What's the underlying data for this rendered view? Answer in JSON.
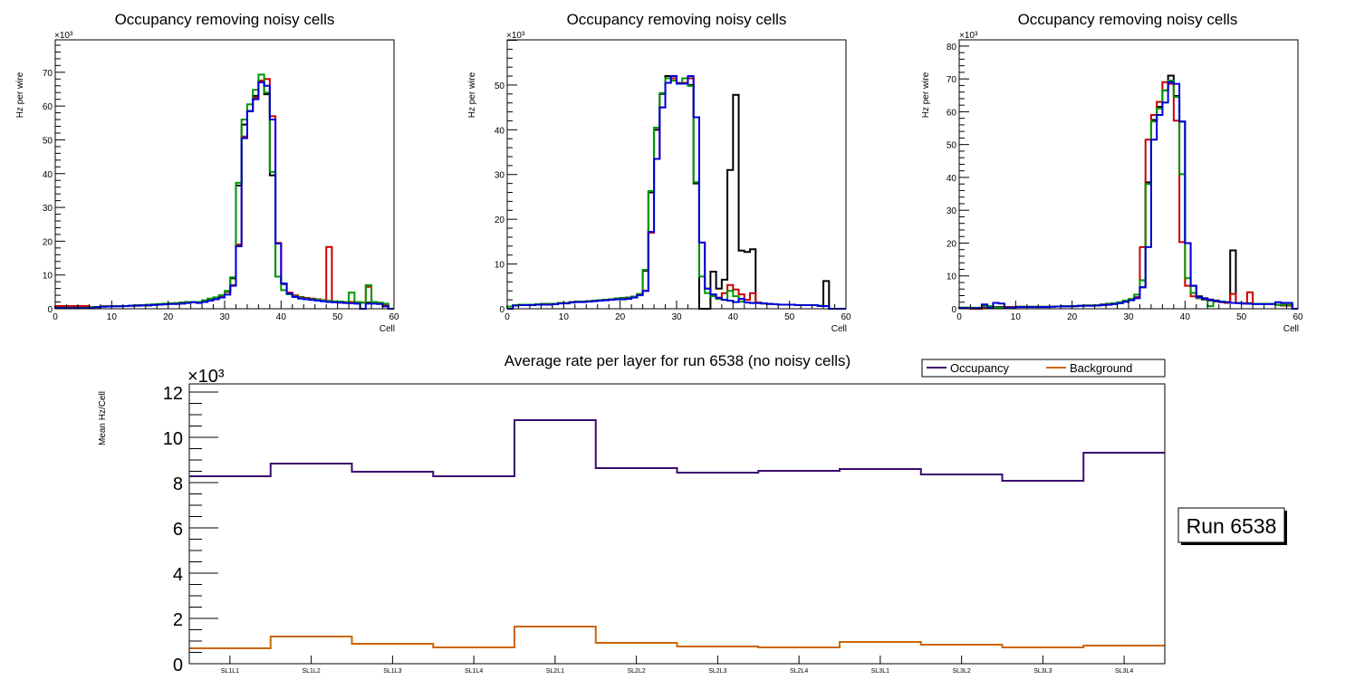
{
  "chart_data": [
    {
      "type": "line",
      "subtype": "step-histogram",
      "title": "Occupancy removing noisy cells",
      "xlabel": "Cell",
      "ylabel": "Hz per wire",
      "y_multiplier_label": "×10³",
      "xlim": [
        0,
        60
      ],
      "ylim": [
        0,
        79.6
      ],
      "x_ticks": [
        0,
        10,
        20,
        30,
        40,
        50,
        60
      ],
      "y_ticks": [
        0,
        10,
        20,
        30,
        40,
        50,
        60,
        70
      ],
      "bins": 60,
      "series": [
        {
          "name": "black",
          "color": "#000000",
          "values": [
            0.5,
            0.5,
            0.5,
            0.5,
            0.5,
            0.5,
            0.5,
            0.5,
            0.7,
            0.7,
            0.8,
            0.8,
            0.8,
            0.9,
            1,
            1,
            1,
            1.2,
            1.3,
            1.4,
            1.5,
            1.6,
            1.8,
            2,
            2,
            2,
            2.4,
            2.8,
            3.2,
            3.8,
            5,
            9,
            36.5,
            54.5,
            58.5,
            63,
            67.5,
            63.5,
            39.5,
            9.5,
            7.3,
            4.5,
            3.8,
            3.3,
            3,
            2.8,
            2.7,
            2.5,
            2.3,
            2.1,
            2,
            2,
            2,
            1.9,
            1.8,
            1.8,
            1.7,
            1.6,
            1,
            0
          ]
        },
        {
          "name": "red",
          "color": "#cc0000",
          "values": [
            0.8,
            0.8,
            0.8,
            0.8,
            0.8,
            0.8,
            0.5,
            0.5,
            0.7,
            0.7,
            0.8,
            0.8,
            0.8,
            0.9,
            1,
            1,
            1,
            1.2,
            1.3,
            1.4,
            1.5,
            1.6,
            1.8,
            2,
            2,
            2,
            2.4,
            2.8,
            3.2,
            3.8,
            5,
            7,
            19,
            51,
            58.5,
            62.5,
            67.5,
            68,
            57,
            19.5,
            7.5,
            4.8,
            4,
            3.5,
            3.2,
            3,
            2.8,
            2.5,
            18.3,
            2.1,
            2.1,
            2,
            2,
            1.9,
            1.8,
            6.5,
            1.7,
            1.6,
            1,
            0
          ]
        },
        {
          "name": "green",
          "color": "#009900",
          "values": [
            0.3,
            0.3,
            0.3,
            0.3,
            0.3,
            0.3,
            0.5,
            0.5,
            0.7,
            0.7,
            0.8,
            0.8,
            0.8,
            0.9,
            1,
            1,
            1.2,
            1.3,
            1.4,
            1.5,
            1.6,
            1.7,
            1.8,
            2,
            2,
            2,
            2.5,
            3,
            3.4,
            4,
            5.3,
            9.3,
            37.3,
            56,
            60.5,
            64.8,
            69.3,
            64,
            40.5,
            9.5,
            5.5,
            4.3,
            3.7,
            3.3,
            3,
            2.8,
            2.7,
            2.4,
            2.3,
            2.2,
            2.1,
            2,
            4.8,
            2,
            1.8,
            7,
            2,
            1.8,
            1.5,
            0
          ]
        },
        {
          "name": "blue",
          "color": "#0000dd",
          "values": [
            0.2,
            0.2,
            0.2,
            0.2,
            0.2,
            0.2,
            0.2,
            0.5,
            0.6,
            0.7,
            0.7,
            0.7,
            0.8,
            0.9,
            0.9,
            1,
            1,
            1.1,
            1.2,
            1.3,
            1.4,
            1.4,
            1.5,
            1.7,
            1.9,
            1.7,
            2,
            2.4,
            2.8,
            3.3,
            4.2,
            6.8,
            18.5,
            50.5,
            58.5,
            62,
            67,
            66,
            56,
            19.3,
            7.5,
            4.5,
            3.5,
            3,
            2.8,
            2.6,
            2.4,
            2.2,
            2,
            1.9,
            1.8,
            1.7,
            1.6,
            1.5,
            0,
            1.5,
            1.5,
            1.4,
            0.7,
            0
          ]
        }
      ]
    },
    {
      "type": "line",
      "subtype": "step-histogram",
      "title": "Occupancy removing noisy cells",
      "xlabel": "Cell",
      "ylabel": "Hz per wire",
      "y_multiplier_label": "×10³",
      "xlim": [
        0,
        60
      ],
      "ylim": [
        0,
        60.1
      ],
      "x_ticks": [
        0,
        10,
        20,
        30,
        40,
        50,
        60
      ],
      "y_ticks": [
        0,
        10,
        20,
        30,
        40,
        50
      ],
      "bins": 60,
      "series": [
        {
          "name": "black",
          "color": "#000000",
          "values": [
            0.5,
            0.8,
            0.9,
            0.9,
            0.9,
            1,
            1.1,
            1.1,
            1.1,
            1.3,
            1.3,
            1.5,
            1.6,
            1.6,
            1.7,
            1.8,
            1.9,
            2,
            2.1,
            2.3,
            2.4,
            2.5,
            2.7,
            3.3,
            8.5,
            26,
            40,
            48,
            52,
            51.5,
            50.5,
            50.5,
            50,
            28,
            0,
            0,
            8.3,
            4.5,
            6.5,
            31,
            47.8,
            13,
            12.7,
            13.3,
            1.3,
            1.2,
            1.1,
            1,
            0.9,
            0.9,
            0.9,
            0.8,
            0.8,
            0.8,
            0.8,
            0.7,
            6.2,
            0,
            0,
            0
          ]
        },
        {
          "name": "red",
          "color": "#cc0000",
          "values": [
            0.5,
            0.8,
            0.9,
            0.9,
            0.9,
            1,
            1.1,
            1.1,
            1.1,
            1.3,
            1.3,
            1.5,
            1.6,
            1.6,
            1.7,
            1.8,
            1.9,
            2,
            2.1,
            2.2,
            2.2,
            2.3,
            2.6,
            3.2,
            4,
            17,
            33.5,
            45,
            51.5,
            51.5,
            50.5,
            50.5,
            51.5,
            42.8,
            14.8,
            4.5,
            3,
            2.5,
            3.5,
            5.3,
            4.3,
            3.2,
            2,
            3.5,
            1.4,
            1.2,
            1.1,
            1,
            0.9,
            0.9,
            0.9,
            0.8,
            0.8,
            0.8,
            0.8,
            0.7,
            0.6,
            0,
            0,
            0
          ]
        },
        {
          "name": "green",
          "color": "#009900",
          "values": [
            0.5,
            0.8,
            0.9,
            0.9,
            0.9,
            1,
            1.1,
            1.1,
            1.1,
            1.3,
            1.3,
            1.5,
            1.6,
            1.6,
            1.7,
            1.8,
            1.9,
            2,
            2.1,
            2.3,
            2.3,
            2.4,
            2.7,
            3.3,
            8.7,
            26.3,
            40.5,
            48.2,
            51.5,
            51,
            50.3,
            51.5,
            49.8,
            28.3,
            7.2,
            3.5,
            2.8,
            2.2,
            2,
            4,
            2.8,
            1.6,
            1.4,
            1.3,
            1.3,
            1.2,
            1.1,
            1,
            0.9,
            0.9,
            0.9,
            0.8,
            0.8,
            0.8,
            0.8,
            0.7,
            0.6,
            0,
            0,
            0
          ]
        },
        {
          "name": "blue",
          "color": "#0000dd",
          "values": [
            0,
            0.7,
            0.8,
            0.8,
            0.8,
            0.9,
            0.9,
            0.9,
            1,
            1.2,
            1.2,
            1.4,
            1.5,
            1.5,
            1.6,
            1.7,
            1.8,
            1.9,
            2,
            2.1,
            2.1,
            2.2,
            2.5,
            3,
            4,
            17.2,
            33.5,
            45,
            50.5,
            52,
            50.3,
            50.3,
            52,
            42.8,
            14.8,
            4.5,
            3.2,
            2.4,
            2,
            1.8,
            1.5,
            2.2,
            1.4,
            1.3,
            1.3,
            1.2,
            1.1,
            1,
            0.9,
            0.9,
            0.9,
            0.8,
            0.8,
            0.8,
            0.8,
            0.6,
            0.6,
            0,
            0,
            0
          ]
        }
      ]
    },
    {
      "type": "line",
      "subtype": "step-histogram",
      "title": "Occupancy removing noisy cells",
      "xlabel": "Cell",
      "ylabel": "Hz per wire",
      "y_multiplier_label": "×10³",
      "xlim": [
        0,
        60
      ],
      "ylim": [
        0,
        81.9
      ],
      "x_ticks": [
        0,
        10,
        20,
        30,
        40,
        50,
        60
      ],
      "y_ticks": [
        0,
        10,
        20,
        30,
        40,
        50,
        60,
        70,
        80
      ],
      "bins": 60,
      "series": [
        {
          "name": "black",
          "color": "#000000",
          "values": [
            0.3,
            0.3,
            0,
            0,
            0.5,
            0.5,
            0.5,
            0.5,
            0.5,
            0.5,
            0.6,
            0.6,
            0.6,
            0.6,
            0.6,
            0.6,
            0.7,
            0.7,
            0.8,
            0.8,
            0.8,
            0.9,
            1,
            1,
            1,
            1.3,
            1.5,
            1.5,
            1.8,
            2.2,
            2.8,
            3.5,
            6.5,
            38.5,
            57.5,
            61.5,
            66.5,
            71,
            64.8,
            57,
            20,
            7,
            3.8,
            3.2,
            2.8,
            2.5,
            2.2,
            2,
            17.8,
            1.8,
            1.7,
            1.7,
            1.5,
            1.5,
            1.5,
            1.5,
            1.2,
            1,
            1,
            0
          ]
        },
        {
          "name": "red",
          "color": "#cc0000",
          "values": [
            0.3,
            0.3,
            0,
            0,
            0.3,
            0.3,
            0.3,
            0.3,
            0.5,
            0.5,
            0.6,
            0.6,
            0.6,
            0.6,
            0.6,
            0.6,
            0.7,
            0.7,
            0.8,
            0.8,
            0.8,
            0.9,
            1,
            1,
            1,
            1.2,
            1.4,
            1.5,
            1.8,
            2.2,
            2.8,
            3.5,
            18.8,
            51.5,
            59,
            63,
            69,
            68.5,
            57.3,
            20.3,
            7,
            3.8,
            3.2,
            2.8,
            2.5,
            2.2,
            2,
            1.8,
            4.5,
            1.8,
            1.7,
            5,
            1.5,
            1.5,
            1.5,
            1.5,
            1.2,
            1,
            1,
            0
          ]
        },
        {
          "name": "green",
          "color": "#009900",
          "values": [
            0.3,
            0.3,
            0.3,
            0.3,
            0.8,
            0.8,
            0.3,
            0.3,
            0.3,
            0.3,
            0.6,
            0.6,
            0.6,
            0.6,
            0.6,
            0.6,
            0.7,
            0.7,
            0.8,
            0.8,
            0.8,
            0.9,
            1,
            1,
            1,
            1.2,
            1.4,
            1.7,
            2,
            2.5,
            3,
            4.3,
            8.7,
            38,
            57,
            61,
            66.5,
            69.5,
            64.5,
            41,
            9.3,
            4.8,
            3.3,
            2.8,
            0.8,
            2.3,
            2.2,
            2,
            1.8,
            1.8,
            1.6,
            1.6,
            1.5,
            1.5,
            1.5,
            1.5,
            1.2,
            1.2,
            1.2,
            0
          ]
        },
        {
          "name": "blue",
          "color": "#0000dd",
          "values": [
            0.2,
            0.2,
            0.2,
            0.2,
            1.3,
            0.3,
            1.8,
            1.6,
            0.3,
            0.3,
            0.5,
            0.5,
            0.5,
            0.5,
            0.5,
            0.5,
            0.6,
            0.7,
            0.7,
            0.7,
            0.8,
            0.9,
            0.9,
            0.9,
            1,
            1.1,
            1.2,
            1.4,
            1.7,
            2.1,
            2.6,
            3.2,
            6.6,
            18.8,
            51.5,
            59,
            62.8,
            69,
            68.5,
            57,
            20,
            7,
            3.5,
            3,
            2.7,
            2.4,
            2.1,
            2,
            1.8,
            1.7,
            1.6,
            1.5,
            1.4,
            1.4,
            1.4,
            1.4,
            2,
            1.8,
            1.8,
            0
          ]
        }
      ]
    },
    {
      "type": "line",
      "subtype": "step-histogram",
      "title": "Average rate per layer for run 6538 (no noisy cells)",
      "xlabel": "",
      "ylabel": "Mean Hz/Cell",
      "y_multiplier_label": "×10³",
      "ylim": [
        0,
        12.36
      ],
      "y_ticks": [
        0,
        2,
        4,
        6,
        8,
        10,
        12
      ],
      "categories": [
        "SL1L1",
        "SL1L2",
        "SL1L3",
        "SL1L4",
        "SL2L1",
        "SL2L2",
        "SL2L3",
        "SL2L4",
        "SL3L1",
        "SL3L2",
        "SL3L3",
        "SL3L4"
      ],
      "legend": {
        "position": "top-right",
        "entries": [
          "Occupancy",
          "Background"
        ]
      },
      "series": [
        {
          "name": "Occupancy",
          "color": "#3a0a6e",
          "values": [
            8.28,
            8.84,
            8.48,
            8.28,
            10.76,
            8.64,
            8.44,
            8.52,
            8.6,
            8.36,
            8.08,
            9.32
          ]
        },
        {
          "name": "Background",
          "color": "#cc6600",
          "values": [
            0.68,
            1.2,
            0.88,
            0.72,
            1.64,
            0.92,
            0.76,
            0.72,
            0.96,
            0.84,
            0.72,
            0.8
          ]
        }
      ],
      "annotation": "Run 6538"
    }
  ]
}
